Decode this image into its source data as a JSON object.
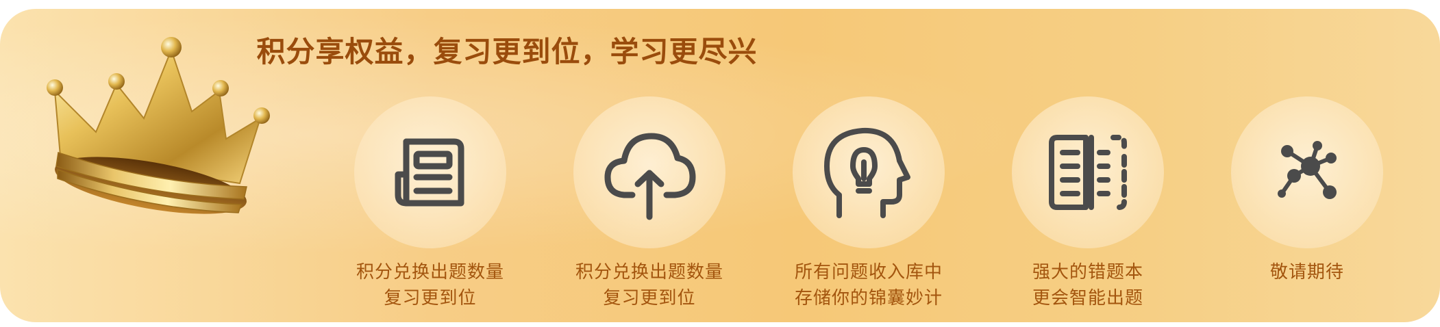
{
  "headline": "积分享权益，复习更到位，学习更尽兴",
  "colors": {
    "headline": "#9a4c0c",
    "benefit_text": "#a3550e",
    "icon_stroke": "#4b4b4b",
    "banner_gradient_left": "#fbe2ae",
    "banner_gradient_right": "#f8d89a"
  },
  "benefits": [
    {
      "icon": "newspaper-icon",
      "line1": "积分兑换出题数量",
      "line2": "复习更到位"
    },
    {
      "icon": "cloud-upload-icon",
      "line1": "积分兑换出题数量",
      "line2": "复习更到位"
    },
    {
      "icon": "head-lightbulb-icon",
      "line1": "所有问题收入库中",
      "line2": "存储你的锦囊妙计"
    },
    {
      "icon": "open-book-icon",
      "line1": "强大的错题本",
      "line2": "更会智能出题"
    },
    {
      "icon": "network-nodes-icon",
      "line1": "敬请期待",
      "line2": ""
    }
  ]
}
